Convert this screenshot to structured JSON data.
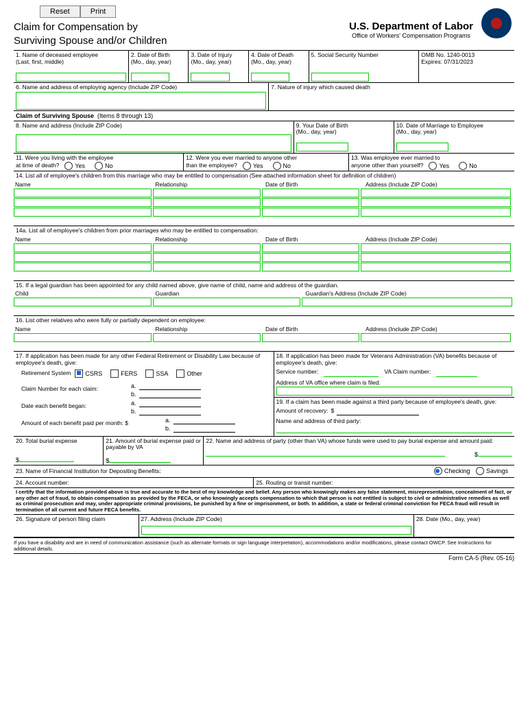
{
  "buttons": {
    "reset": "Reset",
    "print": "Print"
  },
  "title1": "Claim for Compensation by",
  "title2": "Surviving Spouse and/or Children",
  "dept": "U.S. Department of Labor",
  "office": "Office of Workers' Compensation Programs",
  "r1": {
    "c1a": "1. Name of deceased employee",
    "c1b": "(Last, first, middle)",
    "c2a": "2. Date of Birth",
    "c2b": "(Mo., day, year)",
    "c3a": "3. Date of Injury",
    "c3b": "(Mo., day, year)",
    "c4a": "4. Date of Death",
    "c4b": "(Mo., day, year)",
    "c5": "5. Social Security Number",
    "c6a": "OMB No. 1240-0013",
    "c6b": "Expires: 07/31/2023"
  },
  "r2": {
    "c1": "6. Name and address of employing agency (Include ZIP Code)",
    "c2": "7. Nature of injury which caused death"
  },
  "sec_spouse": "Claim of Surviving Spouse",
  "sec_spouse_note": "(Items 8 through 13)",
  "r3": {
    "c1": "8. Name and address (Include ZIP Code)",
    "c2a": "9. Your Date of Birth",
    "c2b": "(Mo., day, year)",
    "c3a": "10. Date of Marriage to Employee",
    "c3b": "(Mo., day, year)"
  },
  "r4": {
    "c1a": "11. Were you living with the employee",
    "c1b": "at time of death?",
    "c2a": "12. Were you ever married to anyone other",
    "c2b": "than the employee?",
    "c3a": "13. Was employee ever married to",
    "c3b": "anyone other than yourself?",
    "yes": "Yes",
    "no": "No"
  },
  "r5": "14. List all of employee's children from this marriage who may be entitled to compensation (See attached information sheet for definition of children)",
  "cols": {
    "name": "Name",
    "rel": "Relationship",
    "dob": "Date of Birth",
    "addr": "Address (Include ZIP Code)"
  },
  "r6": "14a. List all of employee's children from prior marriages who may be entitled to compensation:",
  "r7": "15. If a legal guardian has been appointed for any child named above, give name of child, name and address of the guardian.",
  "r7cols": {
    "child": "Child",
    "guardian": "Guardian",
    "gaddr": "Guardian's Address (Include ZIP Code)"
  },
  "r8": "16. List other relatives who were fully or partially dependent on employee:",
  "r17": {
    "intro": "17. If application has been made for any other Federal Retirement or Disability Law because of employee's death, give:",
    "retsys": "Retirement System",
    "csrs": "CSRS",
    "fers": "FERS",
    "ssa": "SSA",
    "other": "Other",
    "claimno": "Claim Number for each claim:",
    "datebegan": "Date each benefit began:",
    "amtper": "Amount of each benefit paid per month: $",
    "a": "a.",
    "b": "b."
  },
  "r18": {
    "intro": "18. If application has been made for Veterans Administration (VA) benefits because of employee's death, give:",
    "svc": "Service number:",
    "vaclaim": "VA Claim number:",
    "vaaddr": "Address of VA office where claim is filed:"
  },
  "r19": {
    "intro": "19. If a claim has been made against a third party because of employee's death, give:",
    "amt": "Amount of recovery:",
    "dollar": "$",
    "party": "Name and address of third party:"
  },
  "r20": {
    "lbl": "20. Total burial expense",
    "d": "$"
  },
  "r21": {
    "lbl": "21. Amount of burial expense paid or payable by VA",
    "d": "$"
  },
  "r22": {
    "lbl": "22. Name and address of party (other than VA) whose funds were used to pay burial expense and amount paid:",
    "d": "$"
  },
  "r23": {
    "lbl": "23. Name of Financial Institution for Depositing Benefits:",
    "checking": "Checking",
    "savings": "Savings"
  },
  "r24": {
    "lbl": "24. Account number:"
  },
  "r25": {
    "lbl": "25. Routing or transit number:"
  },
  "cert": "I certify that the information provided above is true and accurate to the best of my knowledge and belief. Any person who knowingly makes any false statement, misrepresentation, concealment of fact, or any other act of fraud, to obtain compensation as provided by the FECA, or who knowingly accepts compensation to which that person is not entitled is subject to civil or administrative remedies as well as criminal prosecution and may, under appropriate criminal provisions, be punished by a fine or imprisonment, or both. In addition, a state or federal criminal conviction for FECA fraud will result in termination of all current and future FECA benefits.",
  "r26": "26. Signature of person filing claim",
  "r27": "27. Address (Include ZIP Code)",
  "r28": "28. Date (Mo., day, year)",
  "disability": "If you have a disability and are in need of communication assistance (such as alternate formats or sign language interpretation), accommodations and/or modifications, please contact OWCP. See Instructions for additional details.",
  "formno": "Form CA-5 (Rev. 05-16)"
}
